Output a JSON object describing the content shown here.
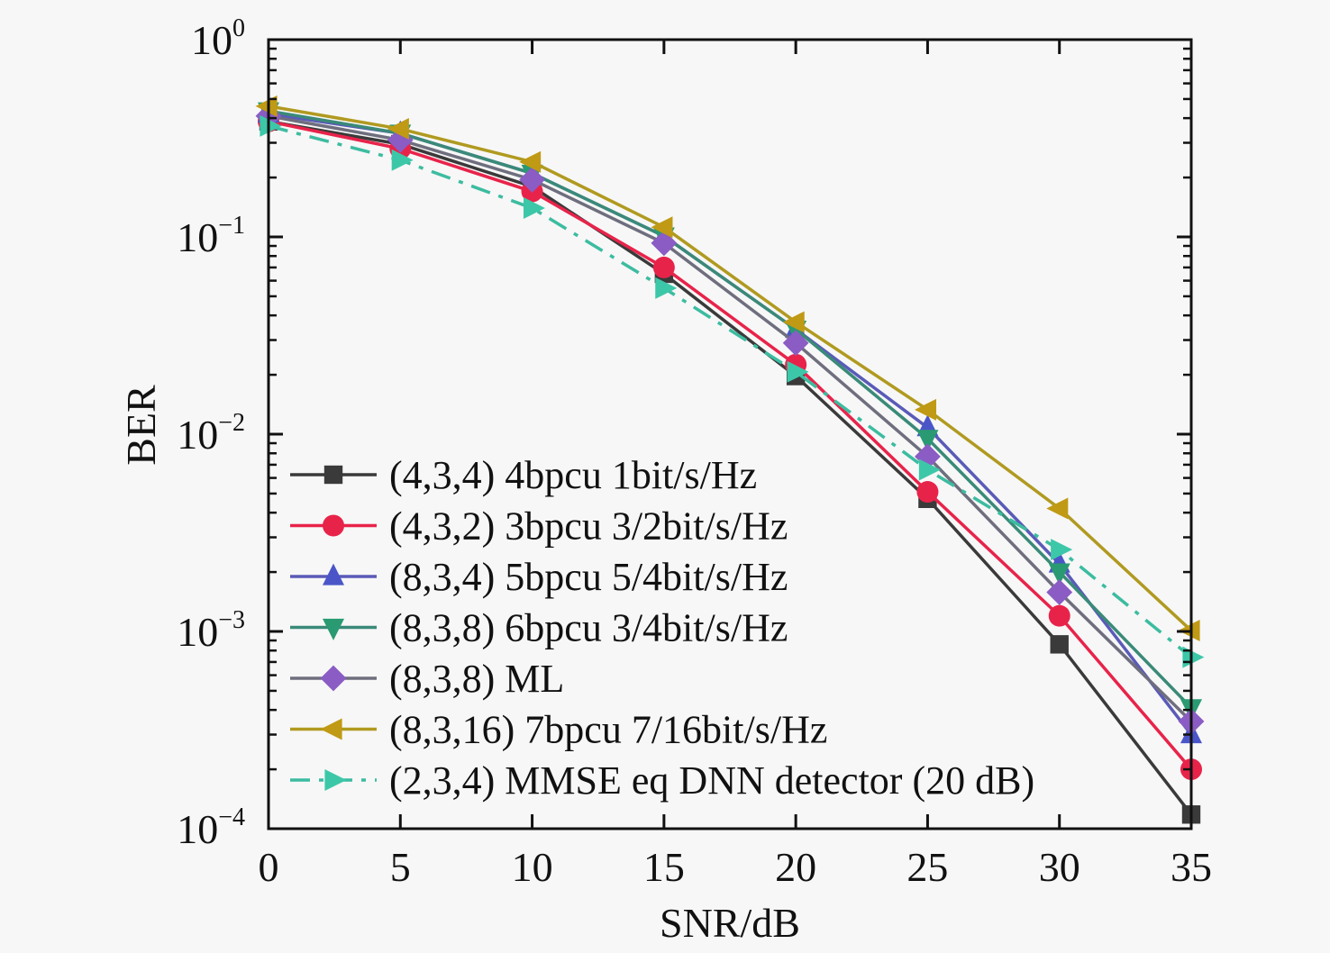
{
  "chart_data": {
    "type": "line",
    "title": "",
    "xlabel": "SNR/dB",
    "ylabel": "BER",
    "xlim": [
      0,
      35
    ],
    "ylim": [
      0.0001,
      1
    ],
    "yscale": "log",
    "grid": false,
    "legend_position": "bottom-left",
    "x": [
      0,
      5,
      10,
      15,
      20,
      25,
      30,
      35
    ],
    "xticks": [
      "0",
      "5",
      "10",
      "15",
      "20",
      "25",
      "30",
      "35"
    ],
    "yticks": [
      {
        "base": "10",
        "exp": "0",
        "value": 1
      },
      {
        "base": "10",
        "exp": "−1",
        "value": 0.1
      },
      {
        "base": "10",
        "exp": "−2",
        "value": 0.01
      },
      {
        "base": "10",
        "exp": "−3",
        "value": 0.001
      },
      {
        "base": "10",
        "exp": "−4",
        "value": 0.0001
      }
    ],
    "series": [
      {
        "name": "(4,3,4) 4bpcu 1bit/s/Hz",
        "color": "#3a3a3a",
        "line_color": "#3a3a3a",
        "marker": "square",
        "dash": "solid",
        "values": [
          0.385,
          0.295,
          0.18,
          0.065,
          0.0197,
          0.0047,
          0.00086,
          0.000118
        ]
      },
      {
        "name": "(4,3,2) 3bpcu 3/2bit/s/Hz",
        "color": "#e8234a",
        "line_color": "#e8234a",
        "marker": "circle",
        "dash": "solid",
        "values": [
          0.385,
          0.28,
          0.17,
          0.07,
          0.0225,
          0.0051,
          0.0012,
          0.0002
        ]
      },
      {
        "name": "(8,3,4) 5bpcu 5/4bit/s/Hz",
        "color": "#4a56c8",
        "line_color": "#5a5ab8",
        "marker": "triangle-up",
        "dash": "solid",
        "values": [
          0.42,
          0.335,
          0.21,
          0.101,
          0.034,
          0.0108,
          0.0022,
          0.0003
        ]
      },
      {
        "name": "(8,3,8) 6bpcu 3/4bit/s/Hz",
        "color": "#2a9a72",
        "line_color": "#3a8a78",
        "marker": "triangle-down",
        "dash": "solid",
        "values": [
          0.435,
          0.335,
          0.21,
          0.101,
          0.034,
          0.0095,
          0.002,
          0.00041
        ]
      },
      {
        "name": "(8,3,8) ML",
        "color": "#8a5cc4",
        "line_color": "#6e6e7e",
        "marker": "diamond",
        "dash": "solid",
        "values": [
          0.41,
          0.31,
          0.195,
          0.093,
          0.029,
          0.0077,
          0.00158,
          0.00035
        ]
      },
      {
        "name": "(8,3,16) 7bpcu 7/16bit/s/Hz",
        "color": "#c09a14",
        "line_color": "#b09a20",
        "marker": "triangle-left",
        "dash": "solid",
        "values": [
          0.46,
          0.353,
          0.24,
          0.112,
          0.037,
          0.0133,
          0.0042,
          0.00101
        ]
      },
      {
        "name": "(2,3,4) MMSE eq DNN detector (20 dB)",
        "color": "#3cc8a8",
        "line_color": "#3cbca0",
        "marker": "triangle-right",
        "dash": "dashdot",
        "values": [
          0.365,
          0.245,
          0.14,
          0.055,
          0.0207,
          0.0066,
          0.0026,
          0.00074
        ]
      }
    ]
  }
}
